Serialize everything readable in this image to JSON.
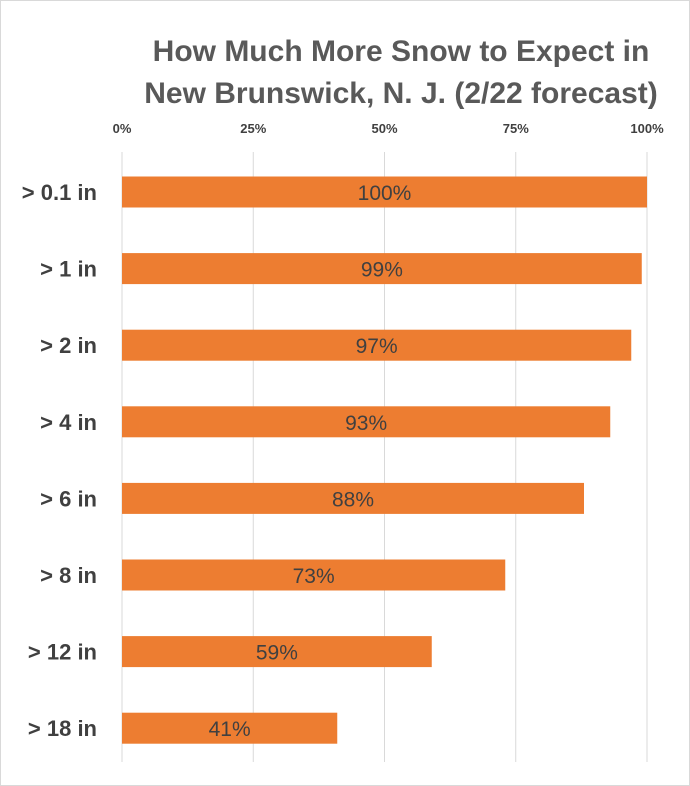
{
  "chart_data": {
    "type": "bar",
    "orientation": "horizontal",
    "title_lines": [
      "How Much More Snow to Expect in",
      "New Brunswick, N. J. (2/22 forecast)"
    ],
    "categories": [
      "> 0.1 in",
      "> 1 in",
      "> 2 in",
      "> 4 in",
      "> 6 in",
      "> 8 in",
      "> 12 in",
      "> 18 in"
    ],
    "values": [
      100,
      99,
      97,
      93,
      88,
      73,
      59,
      41
    ],
    "data_labels": [
      "100%",
      "99%",
      "97%",
      "93%",
      "88%",
      "73%",
      "59%",
      "41%"
    ],
    "xlim": [
      0,
      100
    ],
    "x_ticks": [
      0,
      25,
      50,
      75,
      100
    ],
    "x_tick_labels": [
      "0%",
      "25%",
      "50%",
      "75%",
      "100%"
    ],
    "x_axis_position": "top",
    "grid": true,
    "legend": "none",
    "bar_color": "#ED7D31",
    "grid_color": "#d9d9d9"
  }
}
